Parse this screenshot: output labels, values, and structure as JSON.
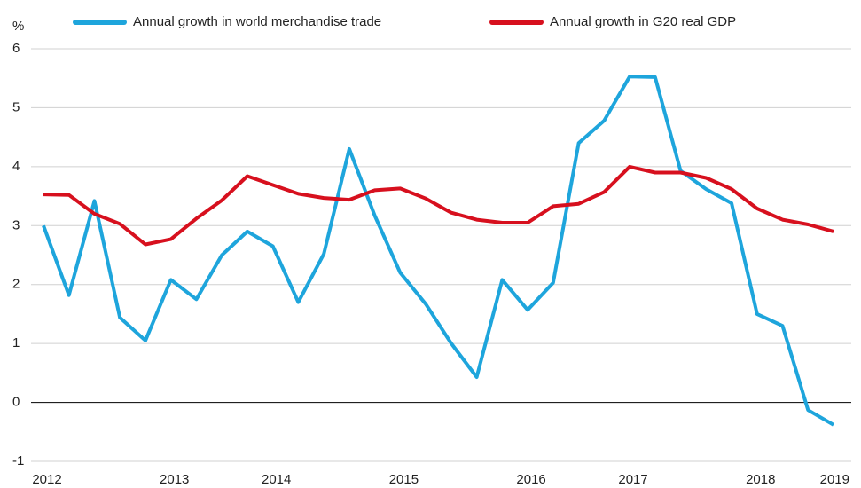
{
  "chart_data": {
    "type": "line",
    "y_label": "%",
    "categories": [
      "2012",
      null,
      null,
      null,
      null,
      "2013",
      null,
      null,
      null,
      "2014",
      null,
      null,
      null,
      null,
      "2015",
      null,
      null,
      null,
      null,
      "2016",
      null,
      null,
      null,
      "2017",
      null,
      null,
      null,
      null,
      "2018",
      null,
      null,
      "2019"
    ],
    "series": [
      {
        "name": "Annual growth in world merchandise trade",
        "color": "#1ea5dc",
        "values": [
          3.0,
          1.82,
          3.42,
          1.44,
          1.05,
          2.08,
          1.75,
          2.5,
          2.9,
          2.65,
          1.7,
          2.52,
          4.3,
          3.17,
          2.2,
          1.67,
          1.0,
          0.43,
          2.08,
          1.57,
          2.03,
          4.4,
          4.78,
          5.53,
          5.52,
          3.93,
          3.62,
          3.38,
          1.5,
          1.3,
          -0.13,
          -0.38
        ]
      },
      {
        "name": "Annual growth in G20 real GDP",
        "color": "#d7101e",
        "values": [
          3.53,
          3.52,
          3.2,
          3.03,
          2.68,
          2.77,
          3.12,
          3.43,
          3.84,
          3.69,
          3.54,
          3.47,
          3.44,
          3.6,
          3.63,
          3.46,
          3.22,
          3.1,
          3.05,
          3.05,
          3.33,
          3.37,
          3.57,
          4.0,
          3.9,
          3.9,
          3.81,
          3.62,
          3.29,
          3.1,
          3.02,
          2.9
        ]
      }
    ],
    "ylim": [
      -1,
      6
    ],
    "yticks": [
      -1,
      0,
      1,
      2,
      3,
      4,
      5,
      6
    ],
    "grid": true
  }
}
